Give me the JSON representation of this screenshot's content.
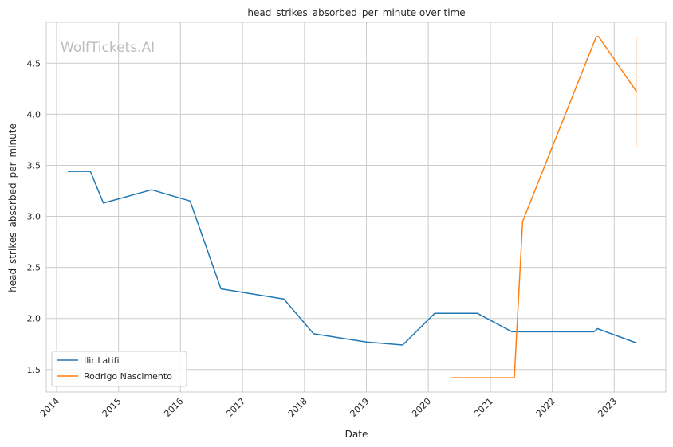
{
  "chart_data": {
    "type": "line",
    "title": "head_strikes_absorbed_per_minute over time",
    "xlabel": "Date",
    "ylabel": "head_strikes_absorbed_per_minute",
    "watermark": "WolfTickets.AI",
    "grid": true,
    "legend_position": "lower-left",
    "xlim": [
      "2013-11-01",
      "2023-11-01"
    ],
    "ylim": [
      1.28,
      4.9
    ],
    "x_ticks": [
      "2014",
      "2015",
      "2016",
      "2017",
      "2018",
      "2019",
      "2020",
      "2021",
      "2022",
      "2023"
    ],
    "y_ticks": [
      "1.5",
      "2.0",
      "2.5",
      "3.0",
      "3.5",
      "4.0",
      "4.5"
    ],
    "series": [
      {
        "name": "Ilir Latifi",
        "color": "#1f77b4",
        "points": [
          [
            "2014-03-08",
            3.44
          ],
          [
            "2014-07-19",
            3.44
          ],
          [
            "2014-10-04",
            3.13
          ],
          [
            "2015-07-15",
            3.26
          ],
          [
            "2016-02-27",
            3.15
          ],
          [
            "2016-08-27",
            2.29
          ],
          [
            "2017-09-02",
            2.19
          ],
          [
            "2018-02-24",
            1.85
          ],
          [
            "2019-01-01",
            1.77
          ],
          [
            "2019-08-03",
            1.74
          ],
          [
            "2020-02-08",
            2.05
          ],
          [
            "2020-10-17",
            2.05
          ],
          [
            "2021-05-08",
            1.87
          ],
          [
            "2022-09-03",
            1.87
          ],
          [
            "2022-09-24",
            1.9
          ],
          [
            "2023-05-13",
            1.76
          ]
        ]
      },
      {
        "name": "Rodrigo Nascimento",
        "color": "#ff7f0e",
        "points": [
          [
            "2020-05-16",
            1.42
          ],
          [
            "2021-05-22",
            1.42
          ],
          [
            "2021-07-10",
            2.95
          ],
          [
            "2022-09-17",
            4.76
          ],
          [
            "2022-10-01",
            4.76
          ],
          [
            "2023-05-13",
            4.22
          ]
        ]
      }
    ],
    "error_bar": {
      "color": "#ff7f0e",
      "x": "2023-05-13",
      "low": 3.68,
      "high": 4.76
    }
  }
}
